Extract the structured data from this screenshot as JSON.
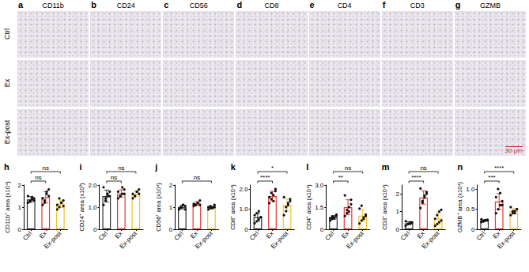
{
  "image_panels": {
    "letters": [
      "a",
      "b",
      "c",
      "d",
      "e",
      "f",
      "g"
    ],
    "markers": [
      "CD11b",
      "CD24",
      "CD56",
      "CD8",
      "CD4",
      "CD3",
      "GZMB"
    ],
    "rows": [
      "Ctrl",
      "Ex",
      "Ex-post"
    ],
    "scale_bar": "30 μm"
  },
  "chart_data": [
    {
      "type": "bar",
      "panel": "h",
      "y_label": "CD11b⁺ area (x10⁴)",
      "categories": [
        "Ctrl",
        "Ex",
        "Ex-post"
      ],
      "values": [
        1.35,
        1.45,
        1.15
      ],
      "errors": [
        0.12,
        0.25,
        0.17
      ],
      "points": [
        [
          1.2,
          1.3,
          1.35,
          1.4,
          1.5,
          1.25,
          1.45,
          1.3
        ],
        [
          1.1,
          1.3,
          1.6,
          1.8,
          1.4,
          1.2,
          1.7,
          1.5
        ],
        [
          0.9,
          1.0,
          1.2,
          1.3,
          1.1,
          1.4,
          1.2,
          1.05
        ]
      ],
      "colors": [
        "#333333",
        "#e53935",
        "#f2c230"
      ],
      "ylim": [
        0,
        2
      ],
      "yticks": [
        0,
        1,
        2
      ],
      "comparisons": [
        {
          "groups": [
            "Ctrl",
            "Ex"
          ],
          "label": "ns"
        },
        {
          "groups": [
            "Ctrl",
            "Ex-post"
          ],
          "label": "ns"
        }
      ]
    },
    {
      "type": "bar",
      "panel": "i",
      "y_label": "CD24⁺ area (x10³)",
      "categories": [
        "Ctrl",
        "Ex",
        "Ex-post"
      ],
      "values": [
        1.5,
        1.62,
        1.6
      ],
      "errors": [
        0.27,
        0.17,
        0.13
      ],
      "points": [
        [
          1.1,
          1.3,
          1.5,
          1.7,
          1.9,
          1.4,
          1.6,
          1.5
        ],
        [
          1.4,
          1.5,
          1.6,
          1.8,
          1.7,
          1.5,
          1.9,
          1.6
        ],
        [
          1.4,
          1.5,
          1.7,
          1.8,
          1.6,
          1.5,
          1.7,
          1.6
        ]
      ],
      "colors": [
        "#333333",
        "#e53935",
        "#f2c230"
      ],
      "ylim": [
        0,
        2
      ],
      "yticks": [
        0,
        {
          "value": 1,
          "label": "1.0"
        },
        {
          "value": 2,
          "label": "2.0"
        }
      ],
      "comparisons": [
        {
          "groups": [
            "Ctrl",
            "Ex"
          ],
          "label": "ns"
        },
        {
          "groups": [
            "Ctrl",
            "Ex-post"
          ],
          "label": "ns"
        }
      ]
    },
    {
      "type": "bar",
      "panel": "j",
      "y_label": "CD56⁺ area (x10⁴)",
      "categories": [
        "Ctrl",
        "Ex",
        "Ex-post"
      ],
      "values": [
        1.0,
        1.16,
        0.99
      ],
      "errors": [
        0.08,
        0.08,
        0.06
      ],
      "points": [
        [
          0.9,
          1.0,
          1.1,
          1.05,
          0.95,
          1.0,
          1.1,
          0.9
        ],
        [
          1.05,
          1.1,
          1.2,
          1.3,
          1.15,
          1.1,
          1.2,
          1.1
        ],
        [
          0.9,
          0.95,
          1.0,
          1.1,
          1.0,
          1.05,
          0.95,
          1.0
        ]
      ],
      "colors": [
        "#333333",
        "#e53935",
        "#f2c230"
      ],
      "ylim": [
        0,
        2
      ],
      "yticks": [
        0,
        1,
        2
      ],
      "comparisons": [
        {
          "groups": [
            "Ctrl",
            "Ex-post"
          ],
          "label": "ns"
        }
      ]
    },
    {
      "type": "bar",
      "panel": "k",
      "y_label": "CD8⁺ area (x10⁴)",
      "categories": [
        "Ctrl",
        "Ex",
        "Ex-post"
      ],
      "values": [
        0.6,
        1.65,
        1.21
      ],
      "errors": [
        0.2,
        0.24,
        0.3
      ],
      "points": [
        [
          0.3,
          0.4,
          0.5,
          0.6,
          0.7,
          0.8,
          0.9,
          0.6
        ],
        [
          1.3,
          1.5,
          1.7,
          1.9,
          1.6,
          1.8,
          1.4,
          2.0
        ],
        [
          0.7,
          0.9,
          1.2,
          1.4,
          1.6,
          1.1,
          1.3,
          1.5
        ]
      ],
      "colors": [
        "#333333",
        "#e53935",
        "#f2c230"
      ],
      "ylim": [
        0,
        2.2
      ],
      "yticks": [
        0,
        {
          "value": 1,
          "label": "1.0"
        },
        {
          "value": 2,
          "label": "2.0"
        }
      ],
      "comparisons": [
        {
          "groups": [
            "Ctrl",
            "Ex"
          ],
          "label": "****"
        },
        {
          "groups": [
            "Ctrl",
            "Ex-post"
          ],
          "label": "*"
        }
      ]
    },
    {
      "type": "bar",
      "panel": "l",
      "y_label": "CD4⁺ area (x10⁴)",
      "categories": [
        "Ctrl",
        "Ex",
        "Ex-post"
      ],
      "values": [
        0.8,
        1.5,
        0.92
      ],
      "errors": [
        0.13,
        0.5,
        0.4
      ],
      "points": [
        [
          0.6,
          0.7,
          0.8,
          0.9,
          0.75,
          0.85,
          0.8,
          1.0
        ],
        [
          0.9,
          1.1,
          1.5,
          2.0,
          2.3,
          1.3,
          1.2,
          1.7
        ],
        [
          0.4,
          0.6,
          0.8,
          1.0,
          1.4,
          1.6,
          0.7,
          0.9
        ]
      ],
      "colors": [
        "#333333",
        "#e53935",
        "#f2c230"
      ],
      "ylim": [
        0,
        3
      ],
      "yticks": [
        0,
        1.5,
        {
          "value": 3,
          "label": "3.0"
        }
      ],
      "comparisons": [
        {
          "groups": [
            "Ctrl",
            "Ex"
          ],
          "label": "**"
        },
        {
          "groups": [
            "Ctrl",
            "Ex-post"
          ],
          "label": "ns"
        }
      ]
    },
    {
      "type": "bar",
      "panel": "m",
      "y_label": "CD3⁺ area (x10⁴)",
      "categories": [
        "Ctrl",
        "Ex",
        "Ex-post"
      ],
      "values": [
        0.34,
        1.8,
        0.61
      ],
      "errors": [
        0.08,
        0.38,
        0.33
      ],
      "points": [
        [
          0.2,
          0.3,
          0.35,
          0.4,
          0.45,
          0.3,
          0.4,
          0.35
        ],
        [
          1.2,
          1.5,
          1.8,
          2.1,
          2.3,
          1.6,
          1.9,
          2.0
        ],
        [
          0.2,
          0.3,
          0.4,
          0.5,
          0.6,
          0.8,
          1.0,
          1.1
        ]
      ],
      "colors": [
        "#333333",
        "#e53935",
        "#f2c230"
      ],
      "ylim": [
        0,
        2.5
      ],
      "yticks": [
        0,
        1,
        2
      ],
      "comparisons": [
        {
          "groups": [
            "Ctrl",
            "Ex"
          ],
          "label": "****"
        },
        {
          "groups": [
            "Ctrl",
            "Ex-post"
          ],
          "label": "ns"
        }
      ]
    },
    {
      "type": "bar",
      "panel": "n",
      "y_label": "GZMB⁺ area (x10⁴)",
      "categories": [
        "Ctrl",
        "Ex",
        "Ex-post"
      ],
      "values": [
        0.22,
        0.69,
        0.45
      ],
      "errors": [
        0.02,
        0.2,
        0.06
      ],
      "points": [
        [
          0.18,
          0.2,
          0.22,
          0.24,
          0.25,
          0.2,
          0.23,
          0.22
        ],
        [
          0.4,
          0.5,
          0.6,
          0.7,
          0.8,
          1.0,
          0.9,
          0.6
        ],
        [
          0.35,
          0.4,
          0.45,
          0.5,
          0.55,
          0.45,
          0.4,
          0.5
        ]
      ],
      "colors": [
        "#333333",
        "#e53935",
        "#f2c230"
      ],
      "ylim": [
        0,
        1.1
      ],
      "yticks": [
        0,
        0.5,
        {
          "value": 1,
          "label": "1.0"
        }
      ],
      "comparisons": [
        {
          "groups": [
            "Ctrl",
            "Ex"
          ],
          "label": "***"
        },
        {
          "groups": [
            "Ctrl",
            "Ex-post"
          ],
          "label": "****"
        }
      ]
    }
  ]
}
